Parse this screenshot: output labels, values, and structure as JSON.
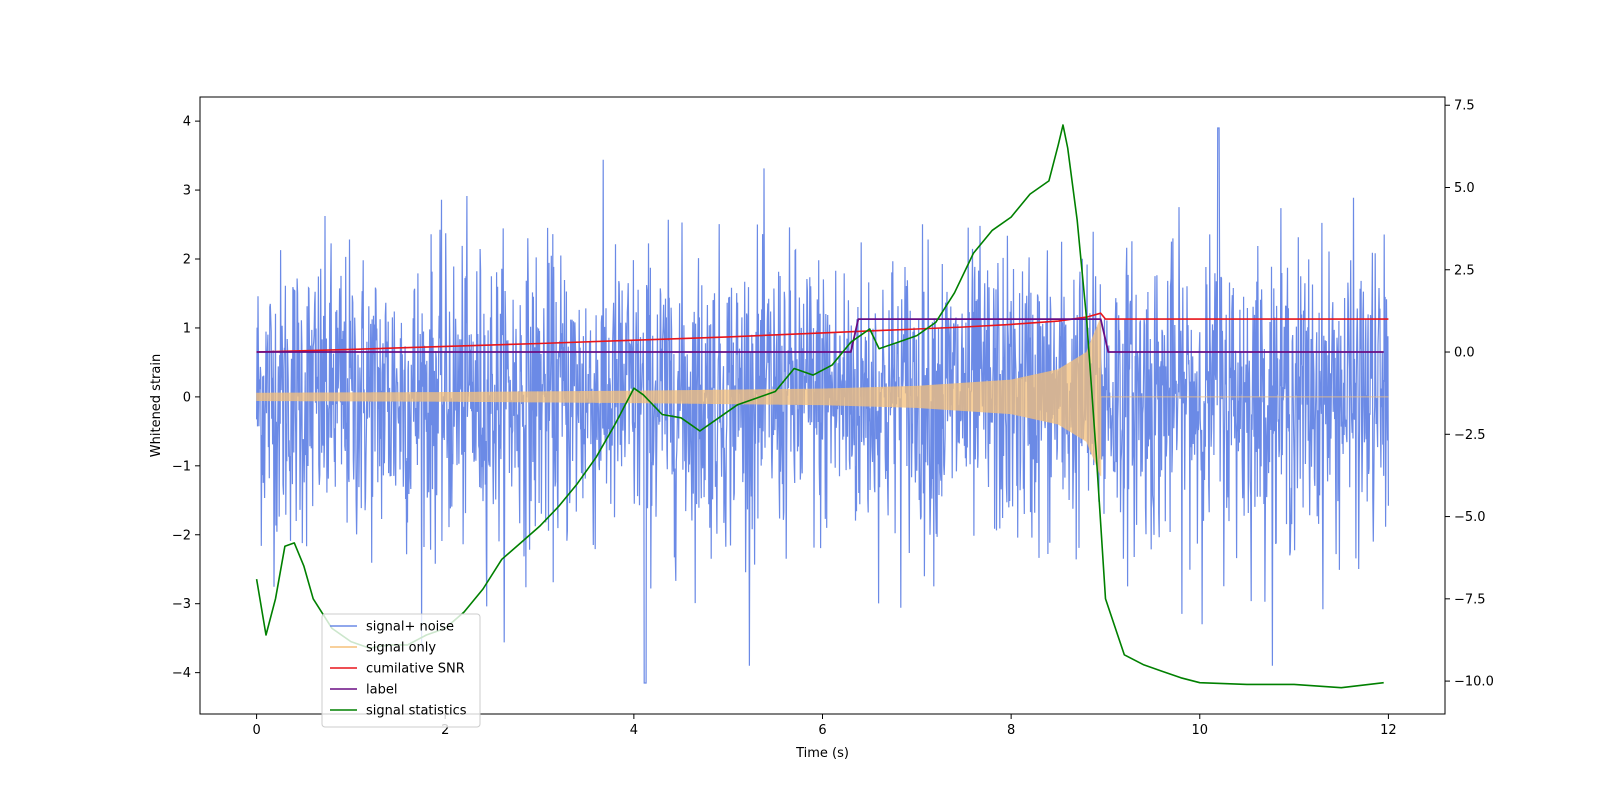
{
  "chart_data": {
    "type": "line",
    "xlabel": "Time (s)",
    "ylabel": "Whitened strain",
    "xlim": [
      -0.6,
      12.6
    ],
    "ylim": [
      -4.6,
      4.35
    ],
    "y2lim": [
      -11.0,
      7.75
    ],
    "xticks": [
      0,
      2,
      4,
      6,
      8,
      10,
      12
    ],
    "yticks": [
      -4,
      -3,
      -2,
      -1,
      0,
      1,
      2,
      3,
      4
    ],
    "y2ticks": [
      -10.0,
      -7.5,
      -5.0,
      -2.5,
      0.0,
      2.5,
      5.0,
      7.5
    ],
    "xtick_labels": [
      "0",
      "2",
      "4",
      "6",
      "8",
      "10",
      "12"
    ],
    "ytick_labels": [
      "−4",
      "−3",
      "−2",
      "−1",
      "0",
      "1",
      "2",
      "3",
      "4"
    ],
    "y2tick_labels": [
      "−10.0",
      "−7.5",
      "−5.0",
      "−2.5",
      "0.0",
      "2.5",
      "5.0",
      "7.5"
    ],
    "grid": false,
    "legend_position": "lower-left",
    "series": [
      {
        "name": "signal+ noise",
        "color": "#6b8ae6",
        "axis": "left",
        "kind": "noise",
        "x_range": [
          0,
          12
        ],
        "typical_range": [
          -2.5,
          2.5
        ],
        "extremes": {
          "max": 3.9,
          "min": -4.15
        }
      },
      {
        "name": "signal only",
        "color": "#f5c07a",
        "axis": "left",
        "kind": "chirp",
        "x_range": [
          0,
          12
        ],
        "envelope": {
          "x": [
            0,
            2,
            4,
            6,
            7,
            8,
            8.5,
            8.8,
            8.95
          ],
          "y": [
            0.06,
            0.07,
            0.09,
            0.12,
            0.16,
            0.25,
            0.4,
            0.65,
            1.15
          ]
        },
        "merger_time": 8.95
      },
      {
        "name": "cumilative SNR",
        "color": "#e8151b",
        "axis": "right",
        "x": [
          0,
          1,
          2,
          3,
          4,
          5,
          6,
          7,
          7.5,
          8,
          8.5,
          8.8,
          8.95,
          9.0,
          12.0
        ],
        "y": [
          0.0,
          0.08,
          0.17,
          0.26,
          0.36,
          0.46,
          0.58,
          0.7,
          0.76,
          0.84,
          0.94,
          1.06,
          1.18,
          1.0,
          1.0
        ]
      },
      {
        "name": "label",
        "color": "#6a0d83",
        "axis": "right",
        "x": [
          0,
          6.3,
          6.38,
          8.95,
          9.03,
          11.95
        ],
        "y": [
          0,
          0,
          1,
          1,
          0,
          0
        ]
      },
      {
        "name": "signal statistics",
        "color": "#008000",
        "axis": "right",
        "x": [
          0.0,
          0.1,
          0.2,
          0.3,
          0.4,
          0.5,
          0.6,
          0.8,
          1.0,
          1.2,
          1.4,
          1.6,
          1.8,
          2.0,
          2.2,
          2.4,
          2.6,
          2.8,
          3.0,
          3.2,
          3.4,
          3.6,
          3.8,
          4.0,
          4.1,
          4.3,
          4.5,
          4.7,
          4.9,
          5.1,
          5.3,
          5.5,
          5.7,
          5.9,
          6.1,
          6.3,
          6.5,
          6.6,
          6.8,
          7.0,
          7.2,
          7.4,
          7.6,
          7.8,
          8.0,
          8.2,
          8.4,
          8.5,
          8.55,
          8.6,
          8.7,
          8.8,
          8.9,
          9.0,
          9.2,
          9.4,
          9.6,
          9.8,
          10.0,
          10.5,
          11.0,
          11.5,
          11.95
        ],
        "y": [
          -6.9,
          -8.6,
          -7.5,
          -5.9,
          -5.8,
          -6.5,
          -7.5,
          -8.4,
          -8.8,
          -9.0,
          -8.9,
          -8.9,
          -8.6,
          -8.4,
          -7.9,
          -7.2,
          -6.3,
          -5.8,
          -5.3,
          -4.7,
          -4.0,
          -3.2,
          -2.2,
          -1.1,
          -1.3,
          -1.9,
          -2.0,
          -2.4,
          -2.0,
          -1.6,
          -1.4,
          -1.2,
          -0.5,
          -0.7,
          -0.4,
          0.3,
          0.7,
          0.1,
          0.3,
          0.5,
          0.9,
          1.8,
          3.0,
          3.7,
          4.1,
          4.8,
          5.2,
          6.3,
          6.9,
          6.2,
          4.0,
          1.0,
          -3.0,
          -7.5,
          -9.2,
          -9.5,
          -9.7,
          -9.9,
          -10.05,
          -10.1,
          -10.1,
          -10.2,
          -10.05
        ]
      }
    ]
  }
}
